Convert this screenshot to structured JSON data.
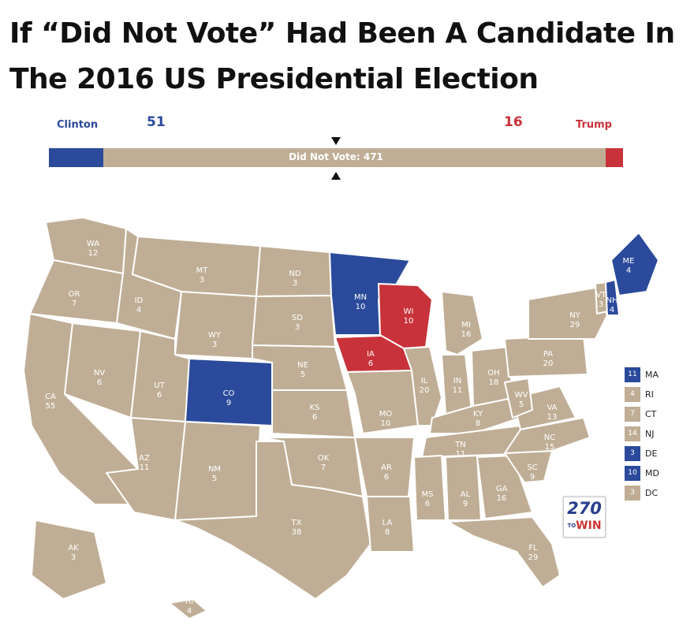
{
  "title": {
    "line1": "If “Did Not Vote” Had Been A Candidate In",
    "line2": "The 2016 US Presidential Election"
  },
  "tally": {
    "left_name": "Clinton",
    "left_votes": "51",
    "right_votes": "16",
    "right_name": "Trump",
    "middle_label": "Did Not Vote: 471",
    "left_fraction": 0.0948,
    "middle_fraction": 0.8755,
    "right_fraction": 0.0297
  },
  "colors": {
    "clinton": "#2b4a9b",
    "trump": "#c8323a",
    "did_not_vote": "#bfae95"
  },
  "states": [
    {
      "abbr": "WA",
      "ev": "12",
      "winner": "dnv"
    },
    {
      "abbr": "OR",
      "ev": "7",
      "winner": "dnv"
    },
    {
      "abbr": "CA",
      "ev": "55",
      "winner": "dnv"
    },
    {
      "abbr": "ID",
      "ev": "4",
      "winner": "dnv"
    },
    {
      "abbr": "NV",
      "ev": "6",
      "winner": "dnv"
    },
    {
      "abbr": "MT",
      "ev": "3",
      "winner": "dnv"
    },
    {
      "abbr": "WY",
      "ev": "3",
      "winner": "dnv"
    },
    {
      "abbr": "UT",
      "ev": "6",
      "winner": "dnv"
    },
    {
      "abbr": "AZ",
      "ev": "11",
      "winner": "dnv"
    },
    {
      "abbr": "CO",
      "ev": "9",
      "winner": "clinton"
    },
    {
      "abbr": "NM",
      "ev": "5",
      "winner": "dnv"
    },
    {
      "abbr": "ND",
      "ev": "3",
      "winner": "dnv"
    },
    {
      "abbr": "SD",
      "ev": "3",
      "winner": "dnv"
    },
    {
      "abbr": "NE",
      "ev": "5",
      "winner": "dnv"
    },
    {
      "abbr": "KS",
      "ev": "6",
      "winner": "dnv"
    },
    {
      "abbr": "OK",
      "ev": "7",
      "winner": "dnv"
    },
    {
      "abbr": "TX",
      "ev": "38",
      "winner": "dnv"
    },
    {
      "abbr": "MN",
      "ev": "10",
      "winner": "clinton"
    },
    {
      "abbr": "IA",
      "ev": "6",
      "winner": "trump"
    },
    {
      "abbr": "MO",
      "ev": "10",
      "winner": "dnv"
    },
    {
      "abbr": "AR",
      "ev": "6",
      "winner": "dnv"
    },
    {
      "abbr": "LA",
      "ev": "8",
      "winner": "dnv"
    },
    {
      "abbr": "WI",
      "ev": "10",
      "winner": "trump"
    },
    {
      "abbr": "IL",
      "ev": "20",
      "winner": "dnv"
    },
    {
      "abbr": "MI",
      "ev": "16",
      "winner": "dnv"
    },
    {
      "abbr": "IN",
      "ev": "11",
      "winner": "dnv"
    },
    {
      "abbr": "OH",
      "ev": "18",
      "winner": "dnv"
    },
    {
      "abbr": "KY",
      "ev": "8",
      "winner": "dnv"
    },
    {
      "abbr": "TN",
      "ev": "11",
      "winner": "dnv"
    },
    {
      "abbr": "MS",
      "ev": "6",
      "winner": "dnv"
    },
    {
      "abbr": "AL",
      "ev": "9",
      "winner": "dnv"
    },
    {
      "abbr": "GA",
      "ev": "16",
      "winner": "dnv"
    },
    {
      "abbr": "FL",
      "ev": "29",
      "winner": "dnv"
    },
    {
      "abbr": "SC",
      "ev": "9",
      "winner": "dnv"
    },
    {
      "abbr": "NC",
      "ev": "15",
      "winner": "dnv"
    },
    {
      "abbr": "VA",
      "ev": "13",
      "winner": "dnv"
    },
    {
      "abbr": "WV",
      "ev": "5",
      "winner": "dnv"
    },
    {
      "abbr": "PA",
      "ev": "20",
      "winner": "dnv"
    },
    {
      "abbr": "NY",
      "ev": "29",
      "winner": "dnv"
    },
    {
      "abbr": "VT",
      "ev": "3",
      "winner": "dnv"
    },
    {
      "abbr": "NH",
      "ev": "4",
      "winner": "clinton"
    },
    {
      "abbr": "ME",
      "ev": "4",
      "winner": "clinton"
    },
    {
      "abbr": "AK",
      "ev": "3",
      "winner": "dnv"
    },
    {
      "abbr": "HI",
      "ev": "4",
      "winner": "dnv"
    }
  ],
  "legend": [
    {
      "ev": "11",
      "abbr": "MA",
      "winner": "clinton"
    },
    {
      "ev": "4",
      "abbr": "RI",
      "winner": "dnv"
    },
    {
      "ev": "7",
      "abbr": "CT",
      "winner": "dnv"
    },
    {
      "ev": "14",
      "abbr": "NJ",
      "winner": "dnv"
    },
    {
      "ev": "3",
      "abbr": "DE",
      "winner": "clinton"
    },
    {
      "ev": "10",
      "abbr": "MD",
      "winner": "clinton"
    },
    {
      "ev": "3",
      "abbr": "DC",
      "winner": "dnv"
    }
  ],
  "logo": {
    "number": "270",
    "word": "WIN",
    "small": "TO"
  }
}
